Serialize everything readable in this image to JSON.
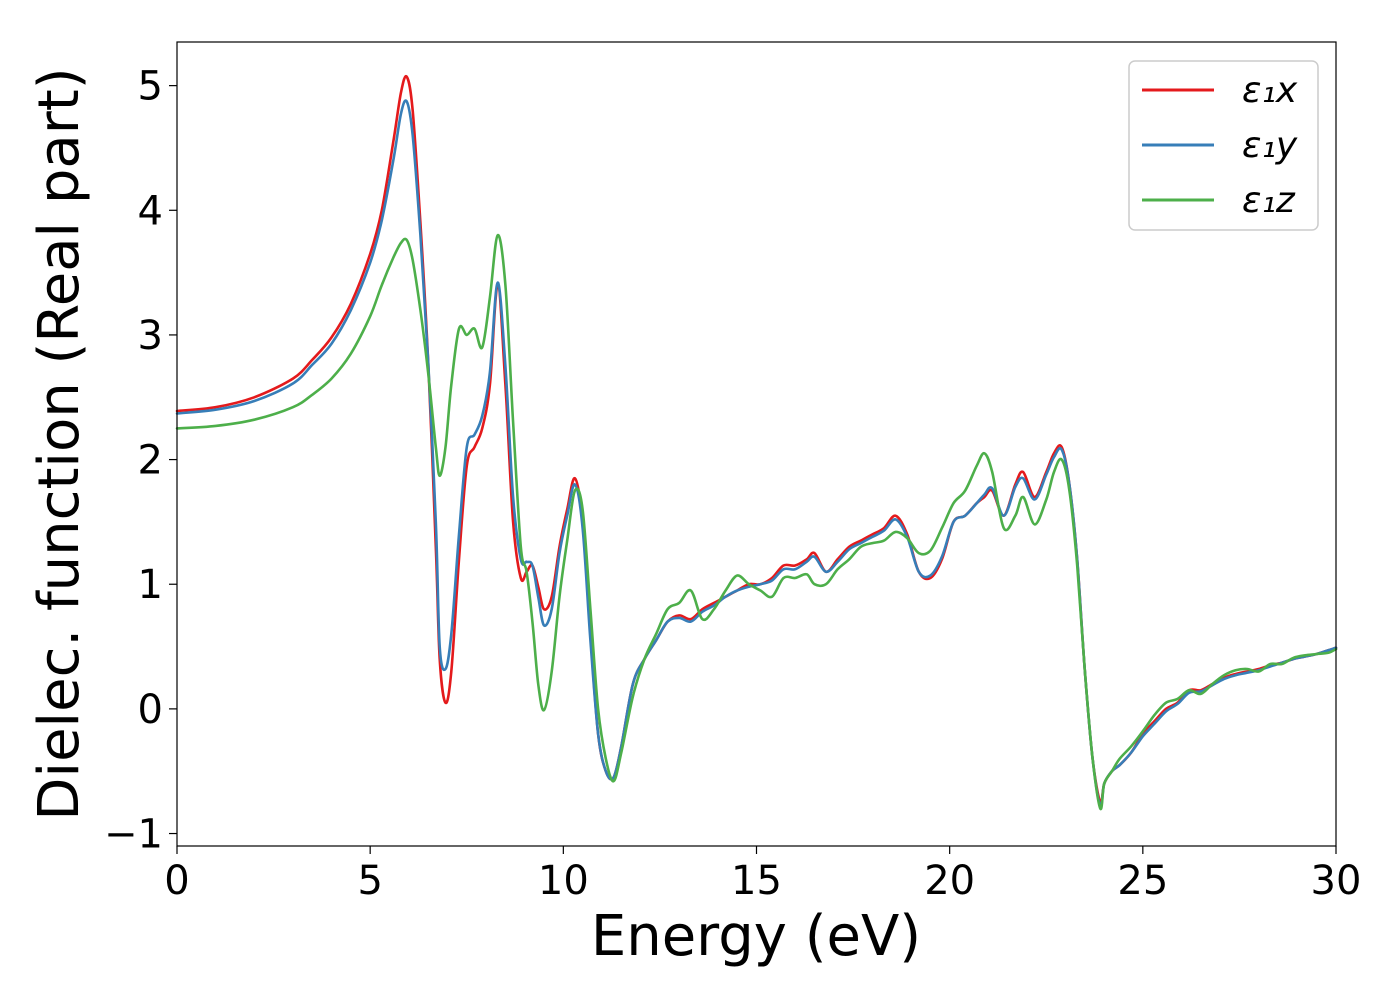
{
  "chart_data": {
    "type": "line",
    "title": "",
    "xlabel": "Energy (eV)",
    "ylabel": "Dielec. function (Real part)",
    "xlim": [
      0,
      30
    ],
    "ylim": [
      -1.1,
      5.35
    ],
    "x_ticks": [
      0,
      5,
      10,
      15,
      20,
      25,
      30
    ],
    "x_tick_labels": [
      "0",
      "5",
      "10",
      "15",
      "20",
      "25",
      "30"
    ],
    "y_ticks": [
      -1,
      0,
      1,
      2,
      3,
      4,
      5
    ],
    "y_tick_labels": [
      "−1",
      "0",
      "1",
      "2",
      "3",
      "4",
      "5"
    ],
    "grid": false,
    "legend_position": "top-right",
    "series": [
      {
        "name": "ε₁x",
        "color": "#e41a1c",
        "x": [
          0,
          1,
          2,
          3,
          3.5,
          4,
          4.5,
          5,
          5.3,
          5.6,
          5.8,
          5.95,
          6.1,
          6.3,
          6.5,
          6.7,
          6.8,
          6.95,
          7.1,
          7.3,
          7.5,
          7.7,
          7.9,
          8.1,
          8.3,
          8.5,
          8.7,
          8.9,
          9.05,
          9.2,
          9.35,
          9.5,
          9.7,
          9.9,
          10.1,
          10.3,
          10.5,
          10.7,
          10.9,
          11.1,
          11.3,
          11.5,
          11.8,
          12.1,
          12.4,
          12.7,
          13.0,
          13.3,
          13.6,
          13.9,
          14.2,
          14.5,
          14.8,
          15.1,
          15.4,
          15.7,
          16.0,
          16.3,
          16.5,
          16.8,
          17.1,
          17.4,
          17.7,
          18.0,
          18.3,
          18.6,
          18.9,
          19.2,
          19.5,
          19.8,
          20.1,
          20.4,
          20.7,
          20.9,
          21.1,
          21.4,
          21.7,
          21.9,
          22.2,
          22.5,
          22.7,
          22.9,
          23.1,
          23.3,
          23.5,
          23.7,
          23.9,
          24.0,
          24.2,
          24.4,
          24.7,
          25.0,
          25.3,
          25.6,
          25.9,
          26.2,
          26.5,
          26.8,
          27.1,
          27.4,
          27.7,
          28.0,
          28.3,
          28.6,
          28.9,
          29.2,
          29.5,
          29.8,
          30.0
        ],
        "y": [
          2.39,
          2.42,
          2.5,
          2.65,
          2.8,
          2.98,
          3.25,
          3.65,
          4.0,
          4.55,
          4.95,
          5.07,
          4.8,
          3.9,
          2.8,
          1.3,
          0.4,
          0.05,
          0.3,
          1.2,
          1.95,
          2.1,
          2.25,
          2.6,
          3.4,
          2.6,
          1.5,
          1.05,
          1.1,
          1.15,
          0.98,
          0.8,
          0.9,
          1.3,
          1.6,
          1.85,
          1.5,
          0.6,
          -0.2,
          -0.5,
          -0.55,
          -0.3,
          0.2,
          0.4,
          0.55,
          0.7,
          0.75,
          0.72,
          0.8,
          0.85,
          0.9,
          0.95,
          1.0,
          1.0,
          1.05,
          1.15,
          1.15,
          1.2,
          1.25,
          1.1,
          1.2,
          1.3,
          1.35,
          1.4,
          1.45,
          1.55,
          1.4,
          1.1,
          1.05,
          1.2,
          1.5,
          1.55,
          1.65,
          1.7,
          1.75,
          1.55,
          1.8,
          1.9,
          1.7,
          1.9,
          2.05,
          2.1,
          1.8,
          1.2,
          0.3,
          -0.4,
          -0.75,
          -0.6,
          -0.5,
          -0.45,
          -0.35,
          -0.2,
          -0.1,
          0.0,
          0.05,
          0.15,
          0.15,
          0.2,
          0.25,
          0.28,
          0.3,
          0.32,
          0.35,
          0.37,
          0.4,
          0.42,
          0.44,
          0.47,
          0.49
        ]
      },
      {
        "name": "ε₁y",
        "color": "#377eb8",
        "x": [
          0,
          1,
          2,
          3,
          3.5,
          4,
          4.5,
          5,
          5.3,
          5.6,
          5.8,
          5.95,
          6.1,
          6.3,
          6.5,
          6.7,
          6.8,
          6.95,
          7.1,
          7.3,
          7.5,
          7.7,
          7.9,
          8.1,
          8.3,
          8.5,
          8.7,
          8.9,
          9.05,
          9.2,
          9.35,
          9.5,
          9.7,
          9.9,
          10.1,
          10.3,
          10.5,
          10.7,
          10.9,
          11.1,
          11.3,
          11.5,
          11.8,
          12.1,
          12.4,
          12.7,
          13.0,
          13.3,
          13.6,
          13.9,
          14.2,
          14.5,
          14.8,
          15.1,
          15.4,
          15.7,
          16.0,
          16.3,
          16.5,
          16.8,
          17.1,
          17.4,
          17.7,
          18.0,
          18.3,
          18.6,
          18.9,
          19.2,
          19.5,
          19.8,
          20.1,
          20.4,
          20.7,
          20.9,
          21.1,
          21.4,
          21.7,
          21.9,
          22.2,
          22.5,
          22.7,
          22.9,
          23.1,
          23.3,
          23.5,
          23.7,
          23.9,
          24.0,
          24.2,
          24.4,
          24.7,
          25.0,
          25.3,
          25.6,
          25.9,
          26.2,
          26.5,
          26.8,
          27.1,
          27.4,
          27.7,
          28.0,
          28.3,
          28.6,
          28.9,
          29.2,
          29.5,
          29.8,
          30.0
        ],
        "y": [
          2.37,
          2.4,
          2.47,
          2.61,
          2.76,
          2.93,
          3.2,
          3.58,
          3.92,
          4.4,
          4.78,
          4.87,
          4.6,
          3.8,
          2.8,
          1.5,
          0.5,
          0.32,
          0.6,
          1.4,
          2.1,
          2.2,
          2.35,
          2.7,
          3.42,
          2.75,
          1.7,
          1.2,
          1.18,
          1.15,
          0.9,
          0.67,
          0.8,
          1.25,
          1.55,
          1.8,
          1.45,
          0.55,
          -0.2,
          -0.5,
          -0.55,
          -0.3,
          0.2,
          0.4,
          0.55,
          0.7,
          0.73,
          0.7,
          0.78,
          0.83,
          0.9,
          0.95,
          0.98,
          1.0,
          1.03,
          1.12,
          1.12,
          1.18,
          1.22,
          1.1,
          1.18,
          1.28,
          1.33,
          1.38,
          1.43,
          1.52,
          1.38,
          1.1,
          1.07,
          1.22,
          1.5,
          1.55,
          1.65,
          1.72,
          1.77,
          1.55,
          1.78,
          1.85,
          1.68,
          1.88,
          2.02,
          2.08,
          1.8,
          1.2,
          0.3,
          -0.4,
          -0.78,
          -0.6,
          -0.5,
          -0.45,
          -0.35,
          -0.22,
          -0.12,
          -0.02,
          0.04,
          0.13,
          0.14,
          0.19,
          0.24,
          0.27,
          0.29,
          0.31,
          0.34,
          0.37,
          0.4,
          0.42,
          0.44,
          0.47,
          0.49
        ]
      },
      {
        "name": "ε₁z",
        "color": "#4daf4a",
        "x": [
          0,
          1,
          2,
          3,
          3.5,
          4,
          4.5,
          5,
          5.3,
          5.6,
          5.8,
          5.95,
          6.1,
          6.3,
          6.5,
          6.7,
          6.8,
          6.95,
          7.1,
          7.3,
          7.5,
          7.7,
          7.9,
          8.1,
          8.3,
          8.5,
          8.7,
          8.9,
          9.05,
          9.2,
          9.35,
          9.5,
          9.7,
          9.9,
          10.1,
          10.3,
          10.5,
          10.7,
          10.9,
          11.1,
          11.3,
          11.5,
          11.8,
          12.1,
          12.4,
          12.7,
          13.0,
          13.3,
          13.6,
          13.9,
          14.2,
          14.5,
          14.8,
          15.1,
          15.4,
          15.7,
          16.0,
          16.3,
          16.5,
          16.8,
          17.1,
          17.4,
          17.7,
          18.0,
          18.3,
          18.6,
          18.9,
          19.2,
          19.5,
          19.8,
          20.1,
          20.4,
          20.7,
          20.9,
          21.1,
          21.4,
          21.7,
          21.9,
          22.2,
          22.5,
          22.7,
          22.9,
          23.1,
          23.3,
          23.5,
          23.7,
          23.9,
          24.0,
          24.2,
          24.4,
          24.7,
          25.0,
          25.3,
          25.6,
          25.9,
          26.2,
          26.5,
          26.8,
          27.1,
          27.4,
          27.7,
          28.0,
          28.3,
          28.6,
          28.9,
          29.2,
          29.5,
          29.8,
          30.0
        ],
        "y": [
          2.25,
          2.27,
          2.32,
          2.42,
          2.52,
          2.65,
          2.85,
          3.15,
          3.4,
          3.62,
          3.74,
          3.76,
          3.6,
          3.2,
          2.7,
          2.1,
          1.87,
          2.1,
          2.6,
          3.05,
          3.0,
          3.05,
          2.9,
          3.3,
          3.8,
          3.4,
          2.3,
          1.3,
          1.1,
          0.7,
          0.2,
          -0.01,
          0.3,
          0.9,
          1.35,
          1.75,
          1.6,
          0.8,
          0.0,
          -0.4,
          -0.58,
          -0.35,
          0.1,
          0.4,
          0.6,
          0.8,
          0.85,
          0.95,
          0.72,
          0.8,
          0.95,
          1.07,
          1.0,
          0.95,
          0.9,
          1.05,
          1.05,
          1.08,
          1.0,
          1.0,
          1.12,
          1.2,
          1.3,
          1.33,
          1.35,
          1.42,
          1.37,
          1.25,
          1.27,
          1.45,
          1.65,
          1.75,
          1.95,
          2.05,
          1.9,
          1.45,
          1.55,
          1.7,
          1.48,
          1.68,
          1.9,
          2.0,
          1.75,
          1.15,
          0.3,
          -0.4,
          -0.8,
          -0.6,
          -0.5,
          -0.4,
          -0.3,
          -0.18,
          -0.05,
          0.05,
          0.08,
          0.15,
          0.12,
          0.2,
          0.27,
          0.31,
          0.32,
          0.3,
          0.36,
          0.36,
          0.41,
          0.43,
          0.44,
          0.45,
          0.48
        ]
      }
    ]
  }
}
